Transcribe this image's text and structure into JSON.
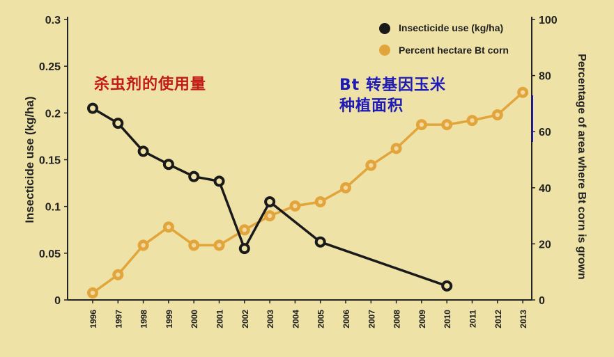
{
  "annotations": {
    "insecticide_cn": "杀虫剂的使用量",
    "bt_area_cn": "Bt 转基因玉米\n种植面积"
  },
  "colors": {
    "background": "#efe2a6",
    "insecticide": "#1a1a1a",
    "bt": "#e2a53c",
    "annotation_red": "#c11b17",
    "annotation_blue": "#1e1ab8"
  },
  "chart_data": {
    "type": "line",
    "title": "",
    "x": [
      "1996",
      "1997",
      "1998",
      "1999",
      "2000",
      "2001",
      "2002",
      "2003",
      "2004",
      "2005",
      "2006",
      "2007",
      "2008",
      "2009",
      "2010",
      "2011",
      "2012",
      "2013"
    ],
    "xlabel": "",
    "ylabel_left": "Insecticide use (kg/ha)",
    "ylabel_right": "Percentage of area where Bt corn is grown",
    "ylim_left": [
      0,
      0.3
    ],
    "ylim_right": [
      0,
      100
    ],
    "yticks_left": [
      "0",
      "0.05",
      "0.1",
      "0.15",
      "0.2",
      "0.25",
      "0.3"
    ],
    "yticks_right": [
      "0",
      "20",
      "40",
      "60",
      "80",
      "100"
    ],
    "legend_position": "top-right",
    "grid": false,
    "series": [
      {
        "name": "Insecticide use (kg/ha)",
        "axis": "left",
        "color": "#1a1a1a",
        "points": [
          {
            "x": "1996",
            "y": 0.205
          },
          {
            "x": "1997",
            "y": 0.189
          },
          {
            "x": "1998",
            "y": 0.159
          },
          {
            "x": "1999",
            "y": 0.145
          },
          {
            "x": "2000",
            "y": 0.132
          },
          {
            "x": "2001",
            "y": 0.127
          },
          {
            "x": "2002",
            "y": 0.055
          },
          {
            "x": "2003",
            "y": 0.105
          },
          {
            "x": "2005",
            "y": 0.062
          },
          {
            "x": "2010",
            "y": 0.015
          }
        ]
      },
      {
        "name": "Percent hectare Bt corn",
        "axis": "right",
        "color": "#e2a53c",
        "points": [
          {
            "x": "1996",
            "y": 2.5
          },
          {
            "x": "1997",
            "y": 9
          },
          {
            "x": "1998",
            "y": 19.5
          },
          {
            "x": "1999",
            "y": 26
          },
          {
            "x": "2000",
            "y": 19.5
          },
          {
            "x": "2001",
            "y": 19.5
          },
          {
            "x": "2002",
            "y": 25
          },
          {
            "x": "2003",
            "y": 30
          },
          {
            "x": "2004",
            "y": 33.5
          },
          {
            "x": "2005",
            "y": 35
          },
          {
            "x": "2006",
            "y": 40
          },
          {
            "x": "2007",
            "y": 48
          },
          {
            "x": "2008",
            "y": 54
          },
          {
            "x": "2009",
            "y": 62.5
          },
          {
            "x": "2010",
            "y": 62.5
          },
          {
            "x": "2011",
            "y": 64
          },
          {
            "x": "2012",
            "y": 66
          },
          {
            "x": "2013",
            "y": 74
          }
        ]
      }
    ]
  }
}
